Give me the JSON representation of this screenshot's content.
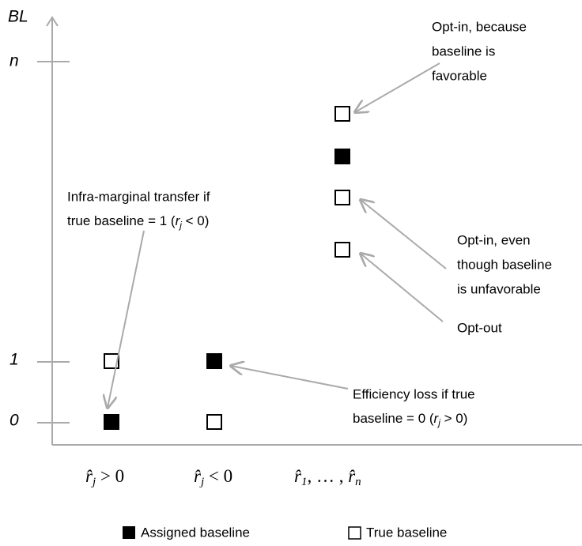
{
  "axis": {
    "y_label": "BL",
    "y_ticks": [
      "n",
      "1",
      "0"
    ],
    "x_labels": [
      [
        "r̂",
        "j",
        " > 0"
      ],
      [
        "r̂",
        "j",
        " < 0"
      ],
      [
        "r̂",
        "1",
        ", … , ",
        "r̂",
        "n"
      ]
    ]
  },
  "annotations": [
    {
      "lines": [
        "Opt-in, because",
        "baseline is",
        "favorable"
      ]
    },
    {
      "lines": [
        "Infra-marginal transfer if",
        [
          "true baseline = 1 (",
          "r",
          "j",
          " < 0)"
        ]
      ]
    },
    {
      "lines": [
        "Opt-in, even",
        "though baseline",
        "is unfavorable"
      ]
    },
    {
      "lines": [
        "Opt-out"
      ]
    },
    {
      "lines": [
        "Efficiency loss if true",
        [
          "baseline = 0 (",
          "r",
          "j",
          " > 0)"
        ]
      ]
    }
  ],
  "legend": [
    "Assigned baseline",
    "True baseline"
  ]
}
